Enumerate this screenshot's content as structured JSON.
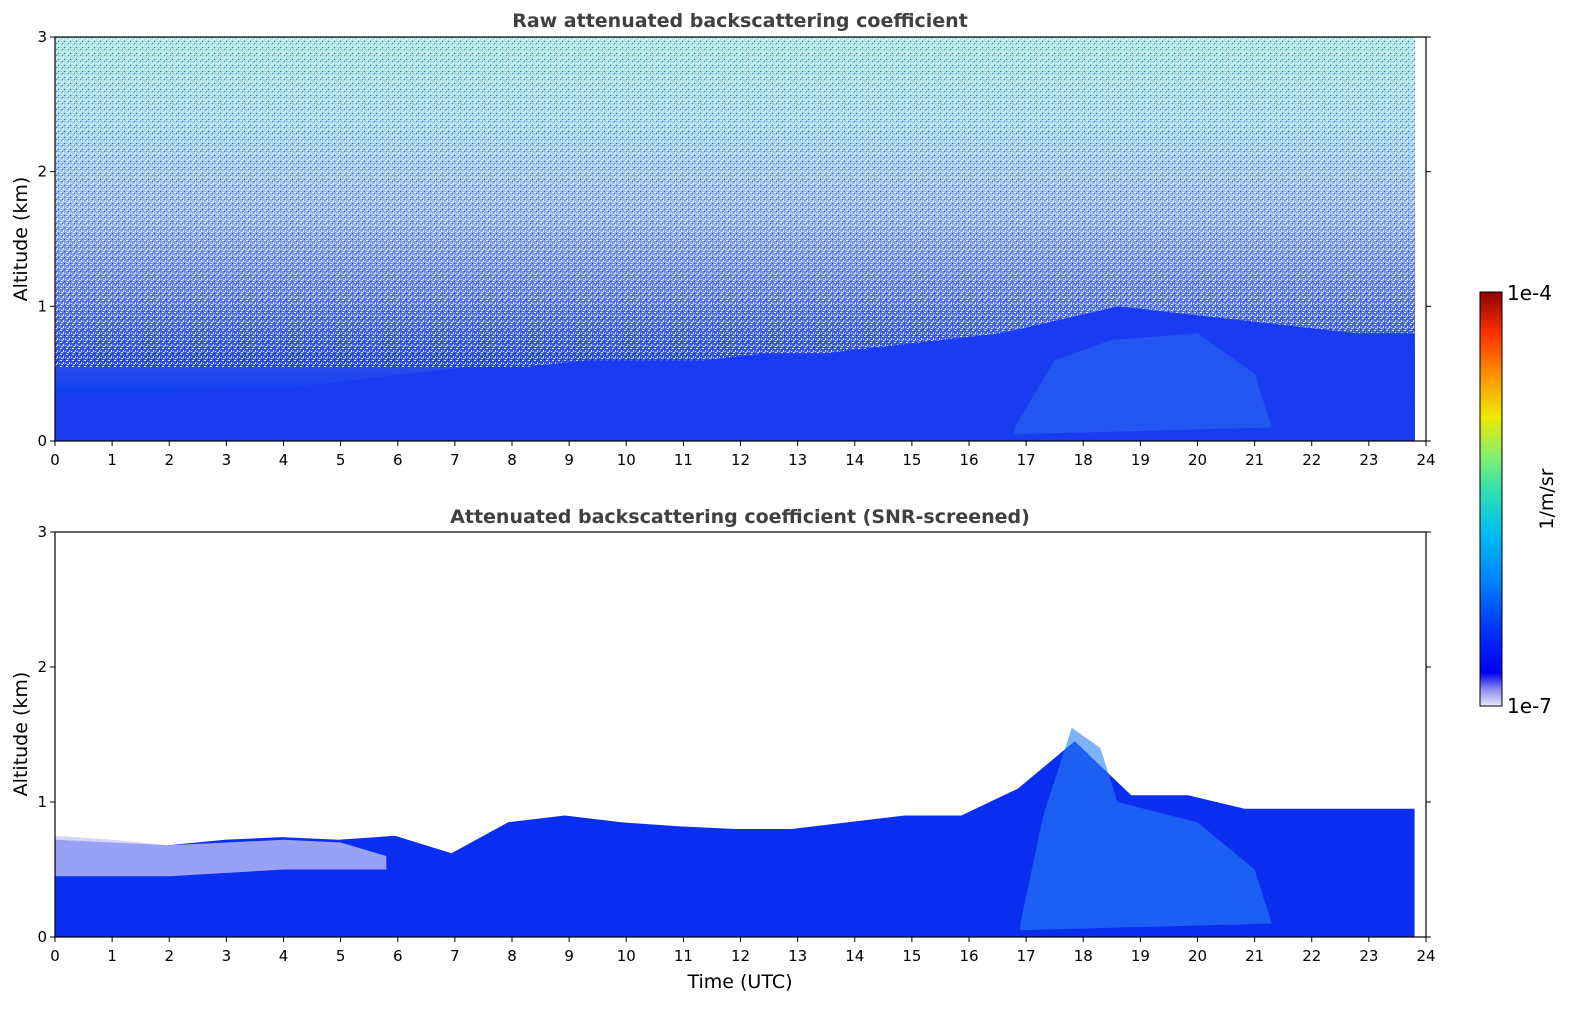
{
  "chart_data": [
    {
      "type": "heatmap",
      "title": "Raw attenuated backscattering coefficient",
      "ylabel": "Altitude (km)",
      "xlabel": "",
      "x_ticks": [
        "0",
        "1",
        "2",
        "3",
        "4",
        "5",
        "6",
        "7",
        "8",
        "9",
        "10",
        "11",
        "12",
        "13",
        "14",
        "15",
        "16",
        "17",
        "18",
        "19",
        "20",
        "21",
        "22",
        "23",
        "24"
      ],
      "y_ticks": [
        "0",
        "1",
        "2",
        "3"
      ],
      "xlim": [
        0,
        24
      ],
      "ylim": [
        0,
        3
      ],
      "data_extent_x": [
        0,
        23.8
      ],
      "description_values": {
        "boundary_layer_top_km": [
          0.35,
          0.35,
          0.35,
          0.4,
          0.4,
          0.45,
          0.5,
          0.55,
          0.55,
          0.6,
          0.6,
          0.6,
          0.65,
          0.65,
          0.7,
          0.75,
          0.8,
          0.9,
          1.0,
          0.95,
          0.9,
          0.85,
          0.8,
          0.8
        ],
        "noise_increases_with_altitude": true
      }
    },
    {
      "type": "heatmap",
      "title": "Attenuated backscattering coefficient (SNR-screened)",
      "ylabel": "Altitude (km)",
      "xlabel": "Time (UTC)",
      "x_ticks": [
        "0",
        "1",
        "2",
        "3",
        "4",
        "5",
        "6",
        "7",
        "8",
        "9",
        "10",
        "11",
        "12",
        "13",
        "14",
        "15",
        "16",
        "17",
        "18",
        "19",
        "20",
        "21",
        "22",
        "23",
        "24"
      ],
      "y_ticks": [
        "0",
        "1",
        "2",
        "3"
      ],
      "xlim": [
        0,
        24
      ],
      "ylim": [
        0,
        3
      ],
      "data_extent_x": [
        0,
        23.8
      ],
      "signal_top_km": [
        0.72,
        0.7,
        0.68,
        0.72,
        0.74,
        0.72,
        0.75,
        0.62,
        0.85,
        0.9,
        0.85,
        0.82,
        0.8,
        0.8,
        0.85,
        0.9,
        0.9,
        1.1,
        1.45,
        1.05,
        1.05,
        0.95,
        0.95,
        0.95,
        0.95
      ]
    }
  ],
  "colorbar": {
    "label": "1/m/sr",
    "max_label": "1e-4",
    "min_label": "1e-7",
    "colors": [
      "#e8e8f8",
      "#c0c0f0",
      "#8c8cf0",
      "#5050f0",
      "#0000f0",
      "#0028f8",
      "#0060ff",
      "#0098ff",
      "#00c8f0",
      "#30e0c0",
      "#80f080",
      "#c0f040",
      "#f0e000",
      "#ffa000",
      "#ff5000",
      "#e01000",
      "#900000"
    ]
  }
}
